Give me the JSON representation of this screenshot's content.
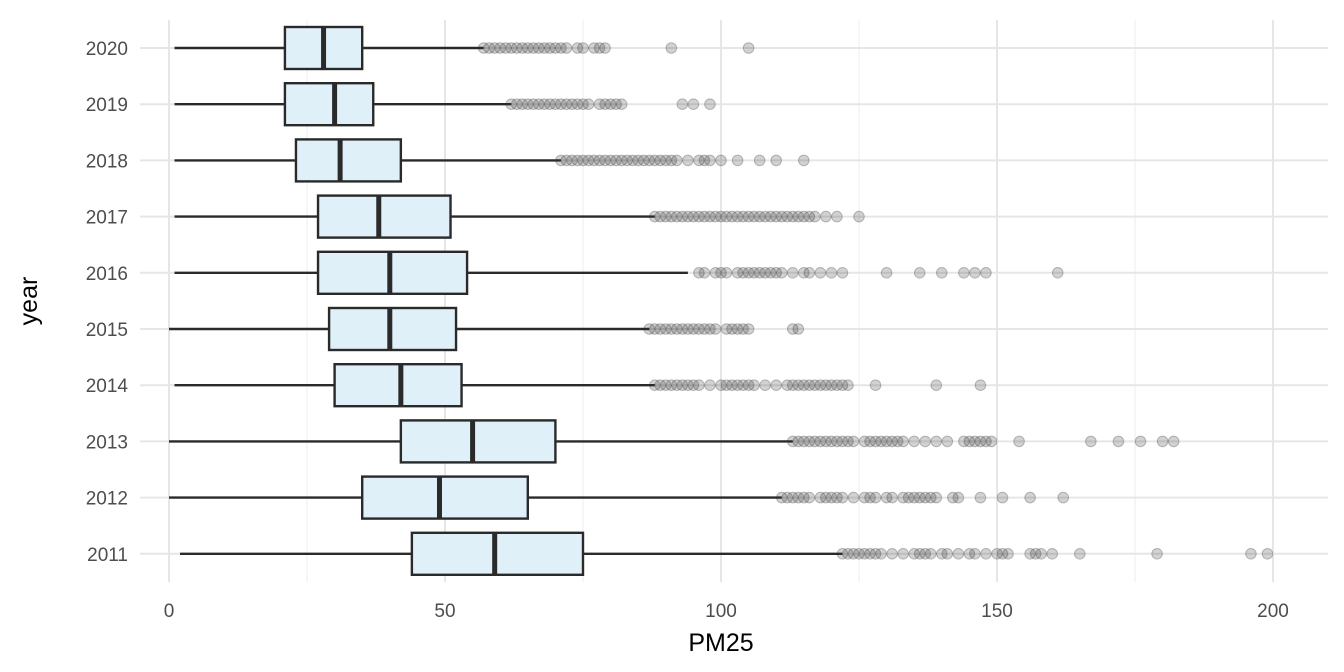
{
  "chart_data": {
    "type": "boxplot",
    "orientation": "horizontal",
    "title": "",
    "xlabel": "PM25",
    "ylabel": "year",
    "xlim": [
      -8,
      210
    ],
    "x_ticks": [
      0,
      50,
      100,
      150,
      200
    ],
    "grid": true,
    "legend": "none",
    "colors": {
      "box_fill": "#e0f0f8",
      "box_stroke": "#2a2a2a",
      "outlier": "#333333",
      "grid_major": "#e6e6e6",
      "grid_minor": "#f0f0f0"
    },
    "categories": [
      "2011",
      "2012",
      "2013",
      "2014",
      "2015",
      "2016",
      "2017",
      "2018",
      "2019",
      "2020"
    ],
    "boxes": [
      {
        "year": "2011",
        "whisker_low": 2,
        "q1": 44,
        "median": 59,
        "q3": 75,
        "whisker_high": 122,
        "outliers": [
          122,
          123,
          124,
          125,
          126,
          127,
          128,
          129,
          131,
          133,
          135,
          136,
          137,
          138,
          140,
          141,
          143,
          145,
          146,
          148,
          150,
          151,
          152,
          156,
          157,
          158,
          160,
          165,
          179,
          196,
          199
        ]
      },
      {
        "year": "2012",
        "whisker_low": 0,
        "q1": 35,
        "median": 49,
        "q3": 65,
        "whisker_high": 111,
        "outliers": [
          111,
          112,
          113,
          114,
          115,
          116,
          118,
          119,
          120,
          121,
          122,
          124,
          126,
          127,
          128,
          130,
          131,
          133,
          134,
          135,
          136,
          137,
          138,
          139,
          142,
          143,
          147,
          151,
          156,
          162
        ]
      },
      {
        "year": "2013",
        "whisker_low": 0,
        "q1": 42,
        "median": 55,
        "q3": 70,
        "whisker_high": 113,
        "outliers": [
          113,
          114,
          115,
          116,
          117,
          118,
          119,
          120,
          121,
          122,
          123,
          124,
          126,
          127,
          128,
          129,
          130,
          131,
          132,
          133,
          135,
          137,
          139,
          141,
          144,
          145,
          146,
          147,
          148,
          149,
          154,
          167,
          172,
          176,
          180,
          182
        ]
      },
      {
        "year": "2014",
        "whisker_low": 1,
        "q1": 30,
        "median": 42,
        "q3": 53,
        "whisker_high": 88,
        "outliers": [
          88,
          89,
          90,
          91,
          92,
          93,
          94,
          95,
          96,
          98,
          100,
          101,
          102,
          103,
          104,
          105,
          106,
          108,
          110,
          112,
          113,
          114,
          115,
          116,
          117,
          118,
          119,
          120,
          121,
          122,
          123,
          128,
          139,
          147
        ]
      },
      {
        "year": "2015",
        "whisker_low": 0,
        "q1": 29,
        "median": 40,
        "q3": 52,
        "whisker_high": 87,
        "outliers": [
          87,
          88,
          89,
          90,
          91,
          92,
          93,
          94,
          95,
          96,
          97,
          98,
          99,
          101,
          102,
          103,
          104,
          105,
          113,
          114
        ]
      },
      {
        "year": "2016",
        "whisker_low": 1,
        "q1": 27,
        "median": 40,
        "q3": 54,
        "whisker_high": 94,
        "outliers": [
          96,
          97,
          99,
          100,
          101,
          103,
          104,
          105,
          106,
          107,
          108,
          109,
          110,
          111,
          113,
          115,
          116,
          118,
          120,
          122,
          130,
          136,
          140,
          144,
          146,
          148,
          161
        ]
      },
      {
        "year": "2017",
        "whisker_low": 1,
        "q1": 27,
        "median": 38,
        "q3": 51,
        "whisker_high": 88,
        "outliers": [
          88,
          89,
          90,
          91,
          92,
          93,
          94,
          95,
          96,
          97,
          98,
          99,
          100,
          101,
          102,
          103,
          104,
          105,
          106,
          107,
          108,
          109,
          110,
          111,
          112,
          113,
          114,
          115,
          116,
          117,
          119,
          121,
          125
        ]
      },
      {
        "year": "2018",
        "whisker_low": 1,
        "q1": 23,
        "median": 31,
        "q3": 42,
        "whisker_high": 71,
        "outliers": [
          71,
          72,
          73,
          74,
          75,
          76,
          77,
          78,
          79,
          80,
          81,
          82,
          83,
          84,
          85,
          86,
          87,
          88,
          89,
          90,
          91,
          92,
          94,
          96,
          97,
          98,
          100,
          103,
          107,
          110,
          115
        ]
      },
      {
        "year": "2019",
        "whisker_low": 1,
        "q1": 21,
        "median": 30,
        "q3": 37,
        "whisker_high": 62,
        "outliers": [
          62,
          63,
          64,
          65,
          66,
          67,
          68,
          69,
          70,
          71,
          72,
          73,
          74,
          75,
          76,
          78,
          79,
          80,
          81,
          82,
          93,
          95,
          98
        ]
      },
      {
        "year": "2020",
        "whisker_low": 1,
        "q1": 21,
        "median": 28,
        "q3": 35,
        "whisker_high": 57,
        "outliers": [
          57,
          58,
          59,
          60,
          61,
          62,
          63,
          64,
          65,
          66,
          67,
          68,
          69,
          70,
          71,
          72,
          74,
          75,
          77,
          78,
          79,
          91,
          105
        ]
      }
    ]
  }
}
